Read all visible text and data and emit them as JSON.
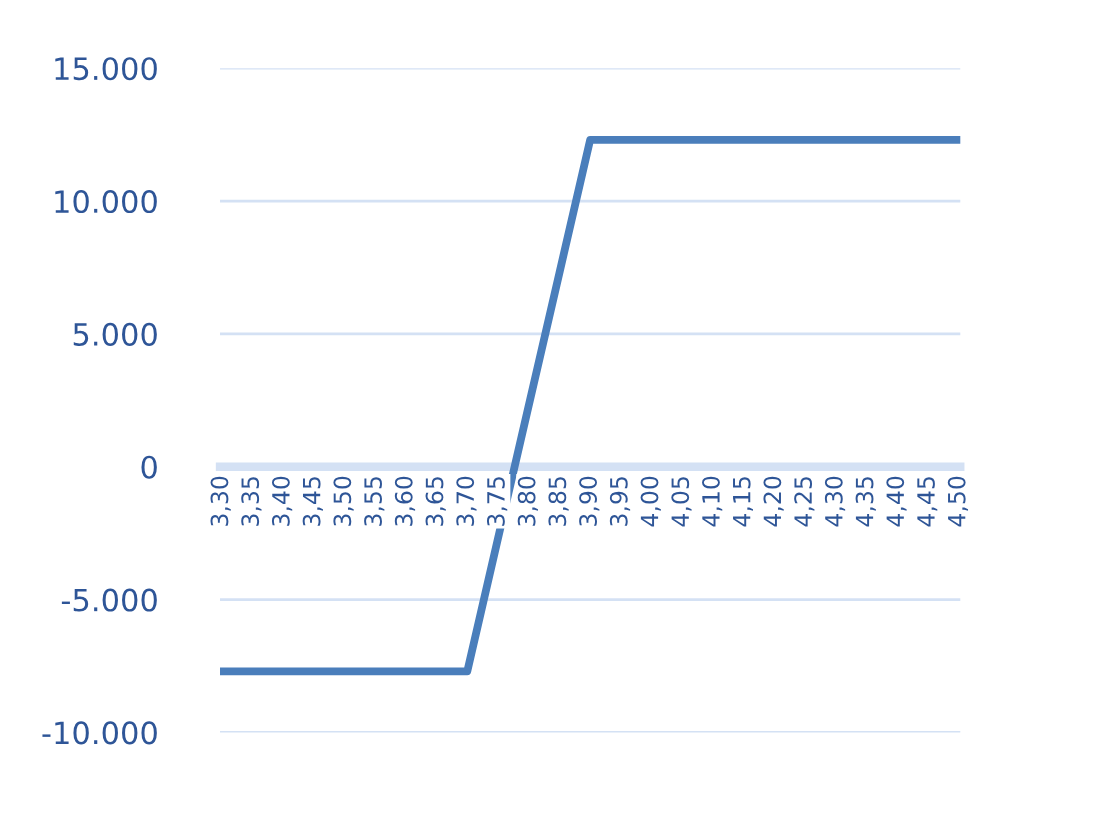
{
  "chart_data": {
    "type": "line",
    "categories": [
      "3,30",
      "3,35",
      "3,40",
      "3,45",
      "3,50",
      "3,55",
      "3,60",
      "3,65",
      "3,70",
      "3,75",
      "3,80",
      "3,85",
      "3,90",
      "3,95",
      "4,00",
      "4,05",
      "4,10",
      "4,15",
      "4,20",
      "4,25",
      "4,30",
      "4,35",
      "4,40",
      "4,45",
      "4,50"
    ],
    "series": [
      {
        "color": "#4a7ebb",
        "values": [
          -7700,
          -7700,
          -7700,
          -7700,
          -7700,
          -7700,
          -7700,
          -7700,
          -7700,
          -2700,
          2300,
          7300,
          12300,
          12300,
          12300,
          12300,
          12300,
          12300,
          12300,
          12300,
          12300,
          12300,
          12300,
          12300,
          12300
        ]
      }
    ],
    "ylim": [
      -10000,
      15000
    ],
    "yticks": [
      {
        "value": -10000,
        "label": "-10.000"
      },
      {
        "value": -5000,
        "label": "-5.000"
      },
      0,
      {
        "value": 5000,
        "label": "5.000"
      },
      {
        "value": 10000,
        "label": "10.000"
      },
      {
        "value": 15000,
        "label": "15.000"
      }
    ],
    "grid": "y",
    "legend": false,
    "marker": "none",
    "line_style": "solid"
  }
}
